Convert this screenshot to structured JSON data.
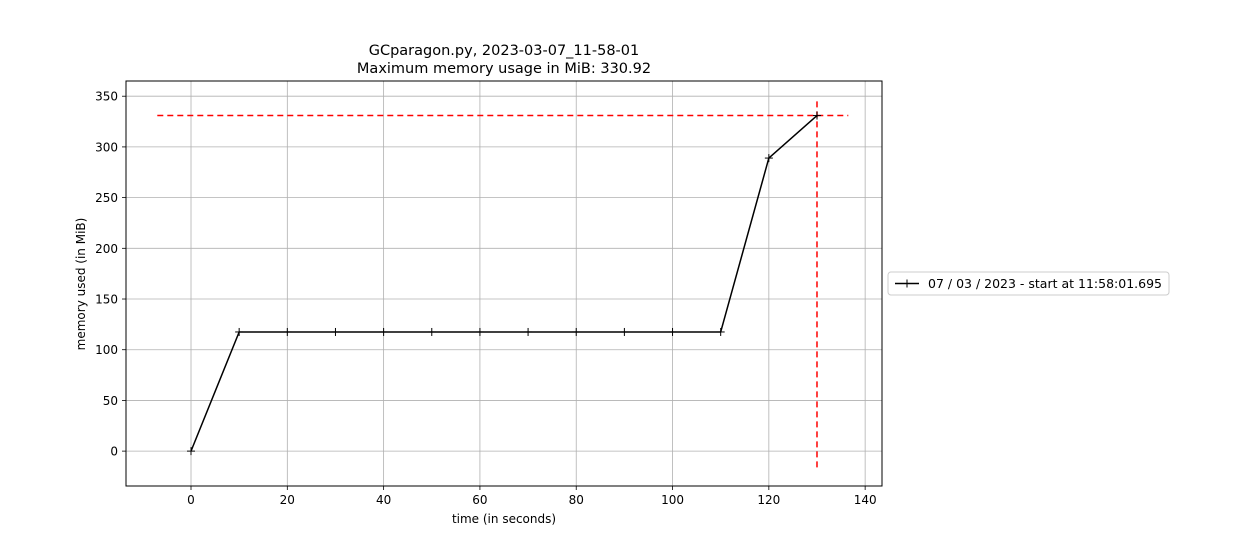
{
  "chart_data": {
    "type": "line",
    "title": "GCparagon.py, 2023-03-07_11-58-01",
    "subtitle": "Maximum memory usage in MiB: 330.92",
    "xlabel": "time (in seconds)",
    "ylabel": "memory used (in MiB)",
    "xlim": [
      -13.5,
      143.5
    ],
    "ylim": [
      -34.4,
      365.0
    ],
    "xticks": [
      0,
      20,
      40,
      60,
      80,
      100,
      120,
      140
    ],
    "yticks": [
      0,
      50,
      100,
      150,
      200,
      250,
      300,
      350
    ],
    "grid": true,
    "legend_position": "outside-right",
    "series": [
      {
        "name": "07 / 03 / 2023 - start at 11:58:01.695",
        "color": "#000000",
        "marker": "plus",
        "x": [
          0,
          10,
          20,
          30,
          40,
          50,
          60,
          70,
          80,
          90,
          100,
          110,
          120,
          130
        ],
        "values": [
          0,
          117.5,
          117.5,
          117.5,
          117.5,
          117.5,
          117.5,
          117.5,
          117.5,
          117.5,
          117.5,
          117.5,
          289,
          330.92
        ]
      }
    ],
    "annotations": {
      "max_value_line": {
        "y": 330.92,
        "x_range": [
          -7,
          136.5
        ],
        "color": "#ff0000",
        "style": "dashed"
      },
      "max_time_line": {
        "x": 130,
        "y_range": [
          -16,
          348
        ],
        "color": "#ff0000",
        "style": "dashed"
      }
    }
  }
}
